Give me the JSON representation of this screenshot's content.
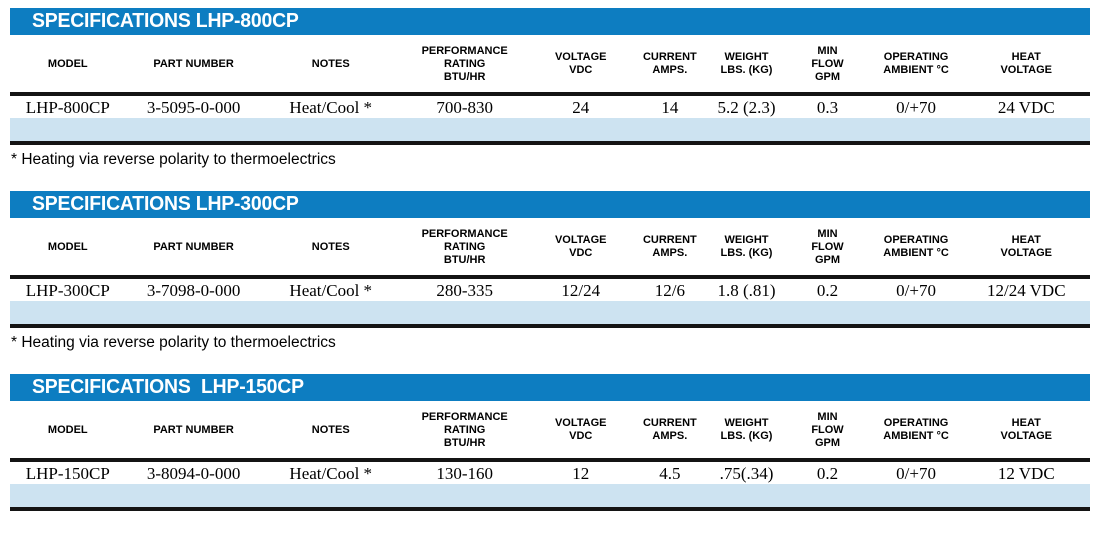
{
  "colors": {
    "header_blue": "#0d7dc1",
    "row_blue": "#cde3f1",
    "rule_black": "#141414"
  },
  "columns": [
    "MODEL",
    "PART NUMBER",
    "NOTES",
    "PERFORMANCE\nRATING\nBTU/HR",
    "VOLTAGE\nVDC",
    "CURRENT\nAMPS.",
    "WEIGHT\nLBS. (KG)",
    "MIN\nFLOW\nGPM",
    "OPERATING\nAMBIENT °C",
    "HEAT\nVOLTAGE"
  ],
  "tables": [
    {
      "title": "SPECIFICATIONS LHP-800CP",
      "row": {
        "model": "LHP-800CP",
        "part_number": "3-5095-0-000",
        "notes": "Heat/Cool *",
        "performance": "700-830",
        "voltage": "24",
        "current": "14",
        "weight": "5.2 (2.3)",
        "min_flow": "0.3",
        "operating_ambient": "0/+70",
        "heat_voltage": "24 VDC"
      },
      "footnote": "* Heating via reverse polarity to thermoelectrics"
    },
    {
      "title": "SPECIFICATIONS LHP-300CP",
      "row": {
        "model": "LHP-300CP",
        "part_number": "3-7098-0-000",
        "notes": "Heat/Cool *",
        "performance": "280-335",
        "voltage": "12/24",
        "current": "12/6",
        "weight": "1.8 (.81)",
        "min_flow": "0.2",
        "operating_ambient": "0/+70",
        "heat_voltage": "12/24 VDC"
      },
      "footnote": "* Heating via reverse polarity to thermoelectrics"
    },
    {
      "title": "SPECIFICATIONS  LHP-150CP",
      "row": {
        "model": "LHP-150CP",
        "part_number": "3-8094-0-000",
        "notes": "Heat/Cool *",
        "performance": "130-160",
        "voltage": "12",
        "current": "4.5",
        "weight": ".75(.34)",
        "min_flow": "0.2",
        "operating_ambient": "0/+70",
        "heat_voltage": "12 VDC"
      }
    }
  ]
}
